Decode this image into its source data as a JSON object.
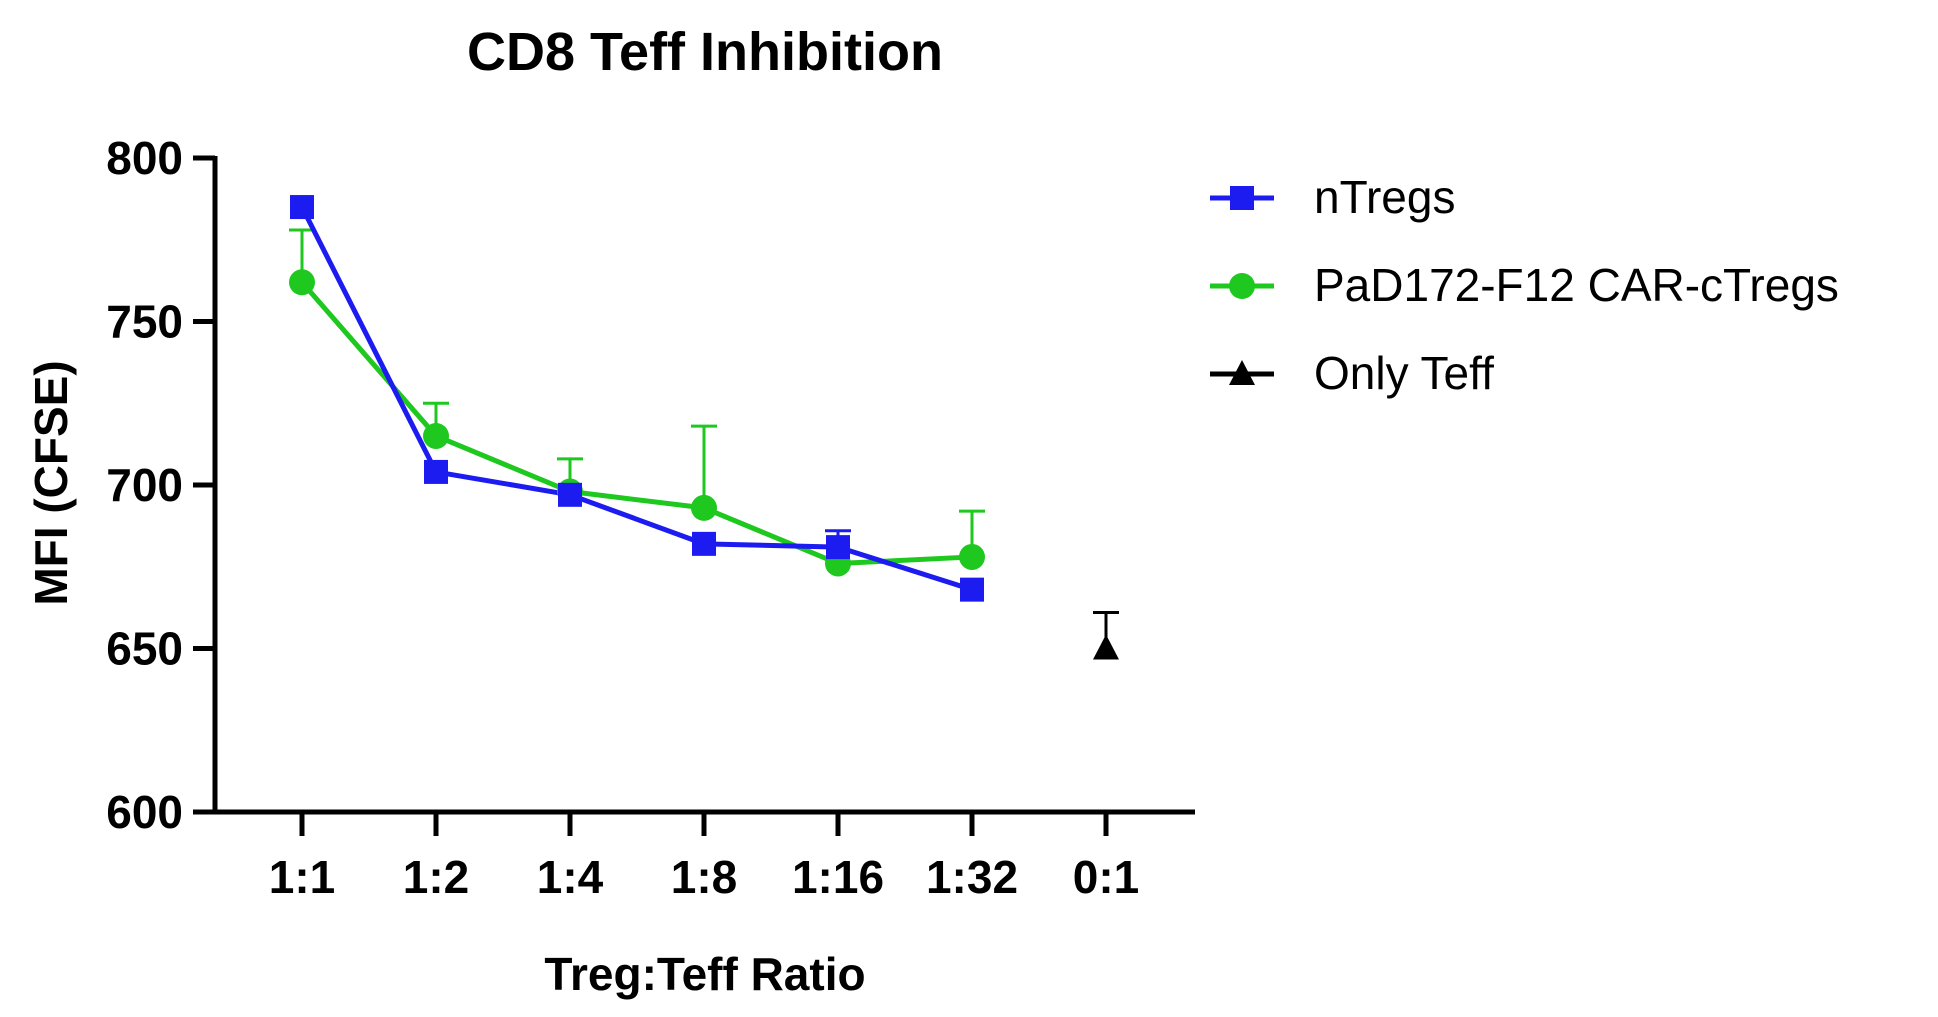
{
  "chart_data": {
    "type": "line",
    "title": "CD8 Teff Inhibition",
    "xlabel": "Treg:Teff Ratio",
    "ylabel": "MFI (CFSE)",
    "ylim": [
      600,
      800
    ],
    "yticks": [
      600,
      650,
      700,
      750,
      800
    ],
    "categories": [
      "1:1",
      "1:2",
      "1:4",
      "1:8",
      "1:16",
      "1:32",
      "0:1"
    ],
    "legend_position": "right",
    "series": [
      {
        "name": "nTregs",
        "marker": "square",
        "color": "#1c1cf0",
        "values": [
          785,
          704,
          697,
          682,
          681,
          668,
          null
        ],
        "error_upper": [
          null,
          null,
          null,
          null,
          686,
          null,
          null
        ]
      },
      {
        "name": "PaD172-F12 CAR-cTregs",
        "marker": "circle",
        "color": "#1ec81e",
        "values": [
          762,
          715,
          698,
          693,
          676,
          678,
          null
        ],
        "error_upper": [
          778,
          725,
          708,
          718,
          null,
          692,
          null
        ]
      },
      {
        "name": "Only Teff",
        "marker": "triangle",
        "color": "#000000",
        "values": [
          null,
          null,
          null,
          null,
          null,
          null,
          650
        ],
        "error_upper": [
          null,
          null,
          null,
          null,
          null,
          null,
          661
        ]
      }
    ]
  }
}
